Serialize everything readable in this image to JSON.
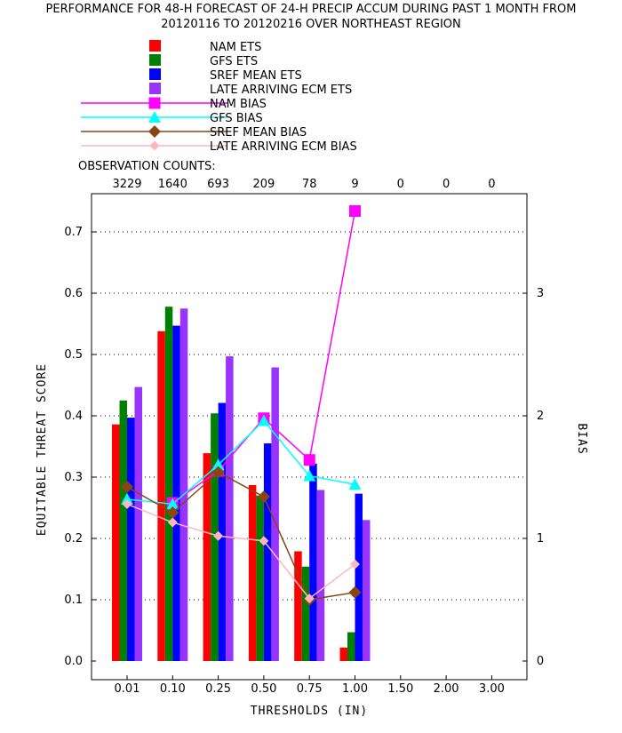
{
  "chart_data": {
    "type": "bar",
    "title": [
      "PERFORMANCE FOR 48-H FORECAST OF 24-H PRECIP ACCUM DURING PAST 1 MONTH FROM",
      "20120116 TO 20120216 OVER NORTHEAST REGION"
    ],
    "xlabel": "THRESHOLDS (IN)",
    "ylabel": "EQUITABLE THREAT SCORE",
    "y2label": "BIAS",
    "categories": [
      "0.01",
      "0.10",
      "0.25",
      "0.50",
      "0.75",
      "1.00",
      "1.50",
      "2.00",
      "3.00"
    ],
    "obs_counts_label": "OBSERVATION COUNTS:",
    "obs_counts": [
      "3229",
      "1640",
      "693",
      "209",
      "78",
      "9",
      "0",
      "0",
      "0"
    ],
    "ylim": [
      0,
      0.75
    ],
    "yticks": [
      "0.0",
      "0.1",
      "0.2",
      "0.3",
      "0.4",
      "0.5",
      "0.6",
      "0.7"
    ],
    "y2lim": [
      0,
      3.75
    ],
    "y2ticks": [
      "0",
      "1",
      "2",
      "3"
    ],
    "grid": true,
    "legend_position": "top",
    "bar_series": [
      {
        "name": "NAM ETS",
        "color": "#ff0000",
        "values": [
          0.386,
          0.538,
          0.339,
          0.287,
          0.179,
          0.022,
          null,
          null,
          null
        ]
      },
      {
        "name": "GFS ETS",
        "color": "#008000",
        "values": [
          0.425,
          0.578,
          0.404,
          0.27,
          0.154,
          0.047,
          null,
          null,
          null
        ]
      },
      {
        "name": "SREF MEAN ETS",
        "color": "#0000ff",
        "values": [
          0.397,
          0.547,
          0.421,
          0.355,
          0.322,
          0.273,
          null,
          null,
          null
        ]
      },
      {
        "name": "LATE ARRIVING ECM ETS",
        "color": "#9933ff",
        "values": [
          0.447,
          0.575,
          0.497,
          0.479,
          0.279,
          0.23,
          null,
          null,
          null
        ]
      }
    ],
    "line_series": [
      {
        "name": "NAM BIAS",
        "color": "#ff00ff",
        "marker": "square",
        "values": [
          null,
          1.29,
          1.55,
          1.98,
          1.64,
          3.67,
          null,
          null,
          null
        ]
      },
      {
        "name": "GFS BIAS",
        "color": "#00ffff",
        "marker": "triangle",
        "values": [
          1.32,
          1.28,
          1.6,
          1.96,
          1.51,
          1.44,
          null,
          null,
          null
        ]
      },
      {
        "name": "SREF MEAN BIAS",
        "color": "#8b4513",
        "marker": "diamond",
        "values": [
          1.42,
          1.21,
          1.54,
          1.34,
          0.5,
          0.56,
          null,
          null,
          null
        ]
      },
      {
        "name": "LATE ARRIVING ECM BIAS",
        "color": "#ffb6c1",
        "marker": "diamond",
        "values": [
          1.28,
          1.13,
          1.02,
          0.98,
          0.51,
          0.79,
          null,
          null,
          null
        ]
      }
    ]
  }
}
